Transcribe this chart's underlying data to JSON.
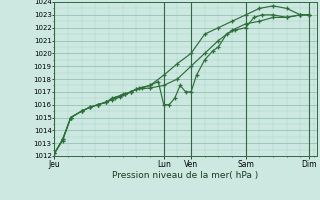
{
  "title": "Pression niveau de la mer( hPa )",
  "bg_color": "#cce8e0",
  "grid_major_color": "#88bbaa",
  "grid_minor_color": "#aad4c8",
  "line_color": "#2d6e3a",
  "vline_color": "#336644",
  "ylim": [
    1012,
    1024
  ],
  "ytick_step": 1,
  "xlim": [
    0,
    9.6
  ],
  "day_lines_x": [
    0.0,
    4.0,
    5.0,
    7.0,
    9.3
  ],
  "day_labels": [
    "Jeu",
    "Lun",
    "Ven",
    "Sam",
    "Dim"
  ],
  "series1_x": [
    0.0,
    0.3,
    0.6,
    1.0,
    1.3,
    1.6,
    1.9,
    2.1,
    2.4,
    2.6,
    2.8,
    3.0,
    3.5,
    4.0,
    4.5,
    5.0,
    5.5,
    6.0,
    6.5,
    7.0,
    7.5,
    8.0,
    8.5,
    9.0,
    9.3
  ],
  "series1_y": [
    1012.2,
    1013.3,
    1015.0,
    1015.5,
    1015.8,
    1016.0,
    1016.2,
    1016.4,
    1016.6,
    1016.8,
    1017.0,
    1017.2,
    1017.3,
    1017.5,
    1018.0,
    1019.0,
    1020.0,
    1021.0,
    1021.8,
    1022.3,
    1022.5,
    1022.8,
    1022.8,
    1023.0,
    1023.0
  ],
  "series2_x": [
    0.0,
    0.3,
    0.6,
    1.0,
    1.3,
    1.6,
    1.9,
    2.1,
    2.4,
    2.6,
    2.8,
    3.0,
    3.2,
    3.5,
    3.8,
    4.0,
    4.2,
    4.4,
    4.6,
    4.8,
    5.0,
    5.2,
    5.5,
    5.8,
    6.0,
    6.3,
    6.6,
    7.0,
    7.3,
    7.6,
    8.0,
    8.5,
    9.0,
    9.3
  ],
  "series2_y": [
    1012.2,
    1013.3,
    1015.0,
    1015.5,
    1015.8,
    1016.0,
    1016.2,
    1016.5,
    1016.7,
    1016.8,
    1017.0,
    1017.2,
    1017.3,
    1017.5,
    1017.8,
    1016.0,
    1016.0,
    1016.5,
    1017.5,
    1017.0,
    1017.0,
    1018.3,
    1019.5,
    1020.2,
    1020.5,
    1021.5,
    1021.8,
    1022.0,
    1022.8,
    1023.0,
    1023.0,
    1022.8,
    1023.0,
    1023.0
  ],
  "series3_x": [
    0.0,
    0.3,
    0.6,
    1.0,
    1.3,
    1.6,
    1.9,
    2.2,
    2.5,
    2.8,
    3.1,
    3.5,
    4.0,
    4.5,
    5.0,
    5.5,
    6.0,
    6.5,
    7.0,
    7.5,
    8.0,
    8.5,
    9.0,
    9.3
  ],
  "series3_y": [
    1012.2,
    1013.2,
    1015.0,
    1015.5,
    1015.8,
    1016.0,
    1016.2,
    1016.5,
    1016.8,
    1017.0,
    1017.3,
    1017.5,
    1018.3,
    1019.2,
    1020.0,
    1021.5,
    1022.0,
    1022.5,
    1023.0,
    1023.5,
    1023.7,
    1023.5,
    1023.0,
    1023.0
  ],
  "ylabel_fontsize": 5.0,
  "xlabel_fontsize": 6.5,
  "xtick_fontsize": 5.5
}
